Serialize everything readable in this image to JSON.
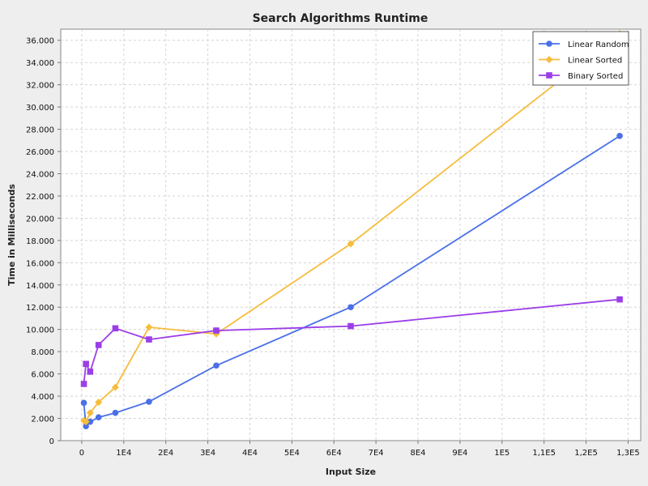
{
  "chart_data": {
    "type": "line",
    "title": "Search Algorithms Runtime",
    "xlabel": "Input Size",
    "ylabel": "Time in Milliseconds",
    "xlim": [
      -5000,
      133000
    ],
    "ylim": [
      0,
      37000
    ],
    "x_ticks": [
      {
        "value": 0,
        "label": "0"
      },
      {
        "value": 10000,
        "label": "1E4"
      },
      {
        "value": 20000,
        "label": "2E4"
      },
      {
        "value": 30000,
        "label": "3E4"
      },
      {
        "value": 40000,
        "label": "4E4"
      },
      {
        "value": 50000,
        "label": "5E4"
      },
      {
        "value": 60000,
        "label": "6E4"
      },
      {
        "value": 70000,
        "label": "7E4"
      },
      {
        "value": 80000,
        "label": "8E4"
      },
      {
        "value": 90000,
        "label": "9E4"
      },
      {
        "value": 100000,
        "label": "1E5"
      },
      {
        "value": 110000,
        "label": "1,1E5"
      },
      {
        "value": 120000,
        "label": "1,2E5"
      },
      {
        "value": 130000,
        "label": "1,3E5"
      }
    ],
    "y_ticks": [
      {
        "value": 0,
        "label": "0"
      },
      {
        "value": 2000,
        "label": "2.000"
      },
      {
        "value": 4000,
        "label": "4.000"
      },
      {
        "value": 6000,
        "label": "6.000"
      },
      {
        "value": 8000,
        "label": "8.000"
      },
      {
        "value": 10000,
        "label": "10.000"
      },
      {
        "value": 12000,
        "label": "12.000"
      },
      {
        "value": 14000,
        "label": "14.000"
      },
      {
        "value": 16000,
        "label": "16.000"
      },
      {
        "value": 18000,
        "label": "18.000"
      },
      {
        "value": 20000,
        "label": "20.000"
      },
      {
        "value": 22000,
        "label": "22.000"
      },
      {
        "value": 24000,
        "label": "24.000"
      },
      {
        "value": 26000,
        "label": "26.000"
      },
      {
        "value": 28000,
        "label": "28.000"
      },
      {
        "value": 30000,
        "label": "30.000"
      },
      {
        "value": 32000,
        "label": "32.000"
      },
      {
        "value": 34000,
        "label": "34.000"
      },
      {
        "value": 36000,
        "label": "36.000"
      }
    ],
    "grid": true,
    "legend_position": "top-right",
    "series": [
      {
        "name": "Linear Random",
        "color": "#4a6fe8",
        "marker": "circle",
        "x": [
          500,
          1000,
          2000,
          4000,
          8000,
          16000,
          32000,
          64000,
          128000
        ],
        "y": [
          3400,
          1300,
          1700,
          2100,
          2500,
          3500,
          6750,
          12000,
          27400
        ]
      },
      {
        "name": "Linear Sorted",
        "color": "#f6bc3c",
        "marker": "diamond",
        "x": [
          500,
          1000,
          2000,
          4000,
          8000,
          16000,
          32000,
          64000,
          128000
        ],
        "y": [
          1800,
          1700,
          2500,
          3450,
          4800,
          10200,
          9600,
          17700,
          36600
        ]
      },
      {
        "name": "Binary Sorted",
        "color": "#9b3ee8",
        "marker": "square",
        "x": [
          500,
          1000,
          2000,
          4000,
          8000,
          16000,
          32000,
          64000,
          128000
        ],
        "y": [
          5100,
          6900,
          6200,
          8600,
          10100,
          9100,
          9900,
          10300,
          12700
        ]
      }
    ]
  }
}
